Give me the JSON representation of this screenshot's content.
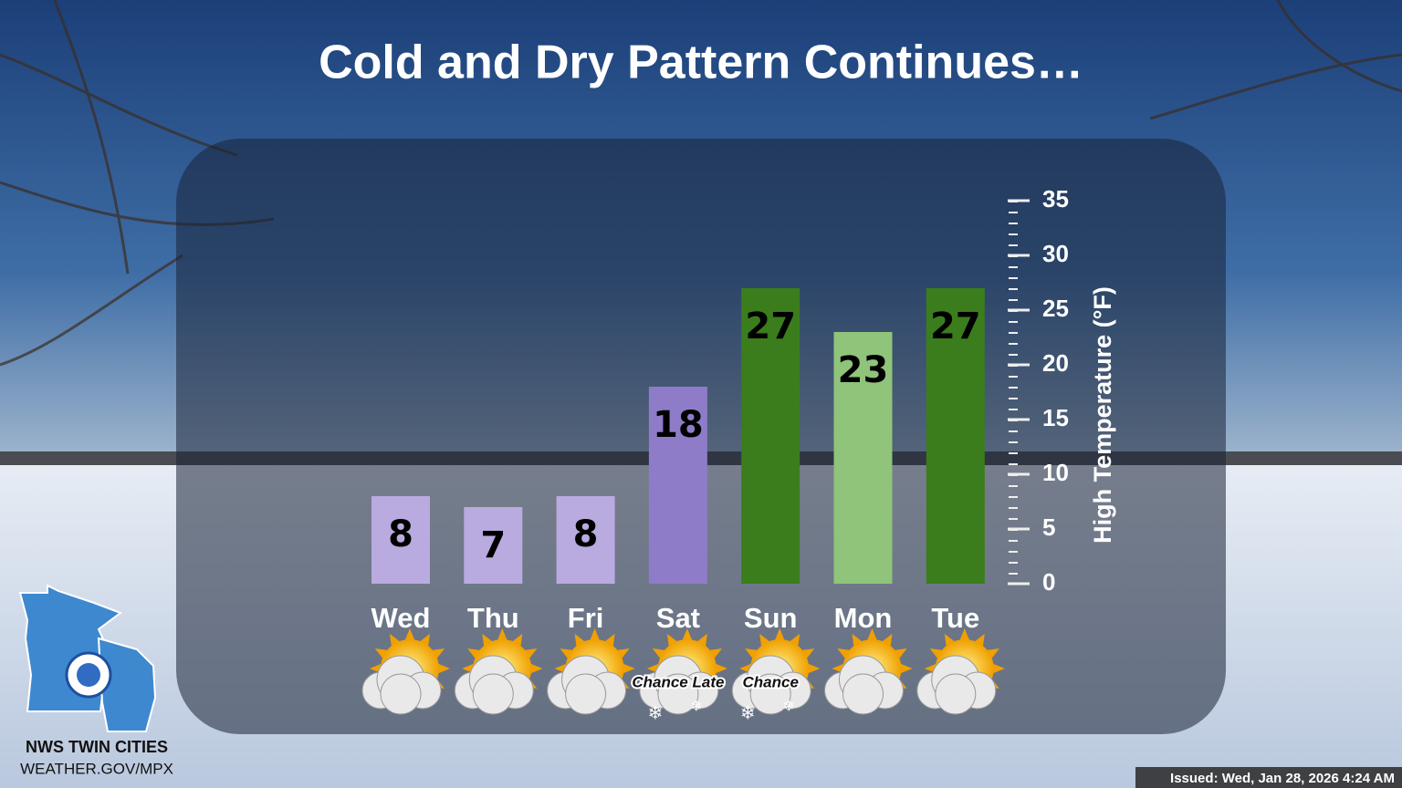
{
  "chart_data": {
    "type": "bar",
    "title": "Cold and Dry Pattern Continues…",
    "y_label": "High Temperature (°F)",
    "categories": [
      "Wed",
      "Thu",
      "Fri",
      "Sat",
      "Sun",
      "Mon",
      "Tue"
    ],
    "values": [
      8,
      7,
      8,
      18,
      27,
      23,
      27
    ],
    "colors": [
      "#b9abdf",
      "#b9abdf",
      "#b9abdf",
      "#8e7cc8",
      "#3b7d1c",
      "#8fc47a",
      "#3b7d1c"
    ],
    "icon_labels": [
      null,
      null,
      null,
      "Chance Late",
      "Chance",
      null,
      null
    ],
    "ylim": [
      0,
      35
    ],
    "yticks": [
      0,
      5,
      10,
      15,
      20,
      25,
      30,
      35
    ]
  },
  "footer": {
    "office": "NWS TWIN CITIES",
    "website": "WEATHER.GOV/MPX",
    "issued": "Issued: Wed, Jan 28, 2026 4:24 AM"
  }
}
